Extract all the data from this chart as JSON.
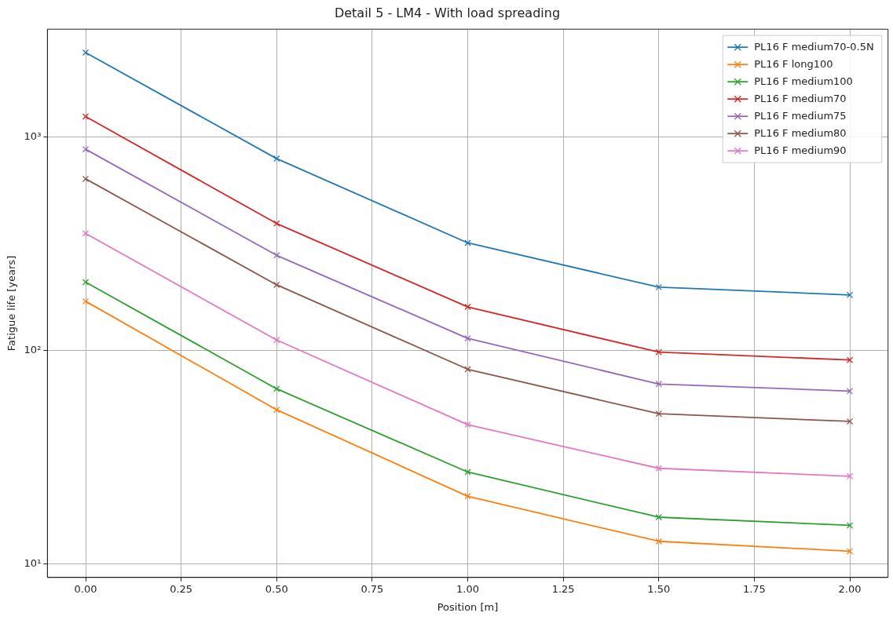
{
  "chart_data": {
    "type": "line",
    "title": "Detail 5 - LM4 - With load spreading",
    "xlabel": "Position [m]",
    "ylabel": "Fatigue life [years]",
    "x": [
      0,
      0.5,
      1,
      1.5,
      2
    ],
    "series": [
      {
        "name": "PL16 F medium70-0.5N",
        "color": "#1f77b4",
        "values": [
          2480,
          791,
          319,
          198,
          182
        ]
      },
      {
        "name": "PL16 F long100",
        "color": "#ff7f0e",
        "values": [
          170,
          52.8,
          20.8,
          12.8,
          11.5
        ]
      },
      {
        "name": "PL16 F medium100",
        "color": "#2ca02c",
        "values": [
          209,
          66.2,
          27.0,
          16.6,
          15.2
        ]
      },
      {
        "name": "PL16 F medium70",
        "color": "#d62728",
        "values": [
          1245,
          393,
          160,
          98.3,
          90.3
        ]
      },
      {
        "name": "PL16 F medium75",
        "color": "#9467bd",
        "values": [
          875,
          279,
          114,
          69.7,
          64.6
        ]
      },
      {
        "name": "PL16 F medium80",
        "color": "#8c564b",
        "values": [
          636,
          203,
          81.7,
          50.6,
          46.6
        ]
      },
      {
        "name": "PL16 F medium90",
        "color": "#e377c2",
        "values": [
          353,
          112,
          45.0,
          28.1,
          25.8
        ]
      }
    ],
    "xlim": [
      -0.1,
      2.1
    ],
    "xticks": [
      {
        "value": 0,
        "label": "0.00"
      },
      {
        "value": 0.25,
        "label": "0.25"
      },
      {
        "value": 0.5,
        "label": "0.50"
      },
      {
        "value": 0.75,
        "label": "0.75"
      },
      {
        "value": 1,
        "label": "1.00"
      },
      {
        "value": 1.25,
        "label": "1.25"
      },
      {
        "value": 1.5,
        "label": "1.50"
      },
      {
        "value": 1.75,
        "label": "1.75"
      },
      {
        "value": 2,
        "label": "2.00"
      }
    ],
    "ylim": [
      8.67,
      3190
    ],
    "yticks": [
      {
        "value": 10,
        "label": "10¹"
      },
      {
        "value": 100,
        "label": "10²"
      },
      {
        "value": 1000,
        "label": "10³"
      }
    ],
    "log": "y",
    "grid": true,
    "legend": "top right",
    "marker": "cross",
    "line_style": "solid"
  }
}
